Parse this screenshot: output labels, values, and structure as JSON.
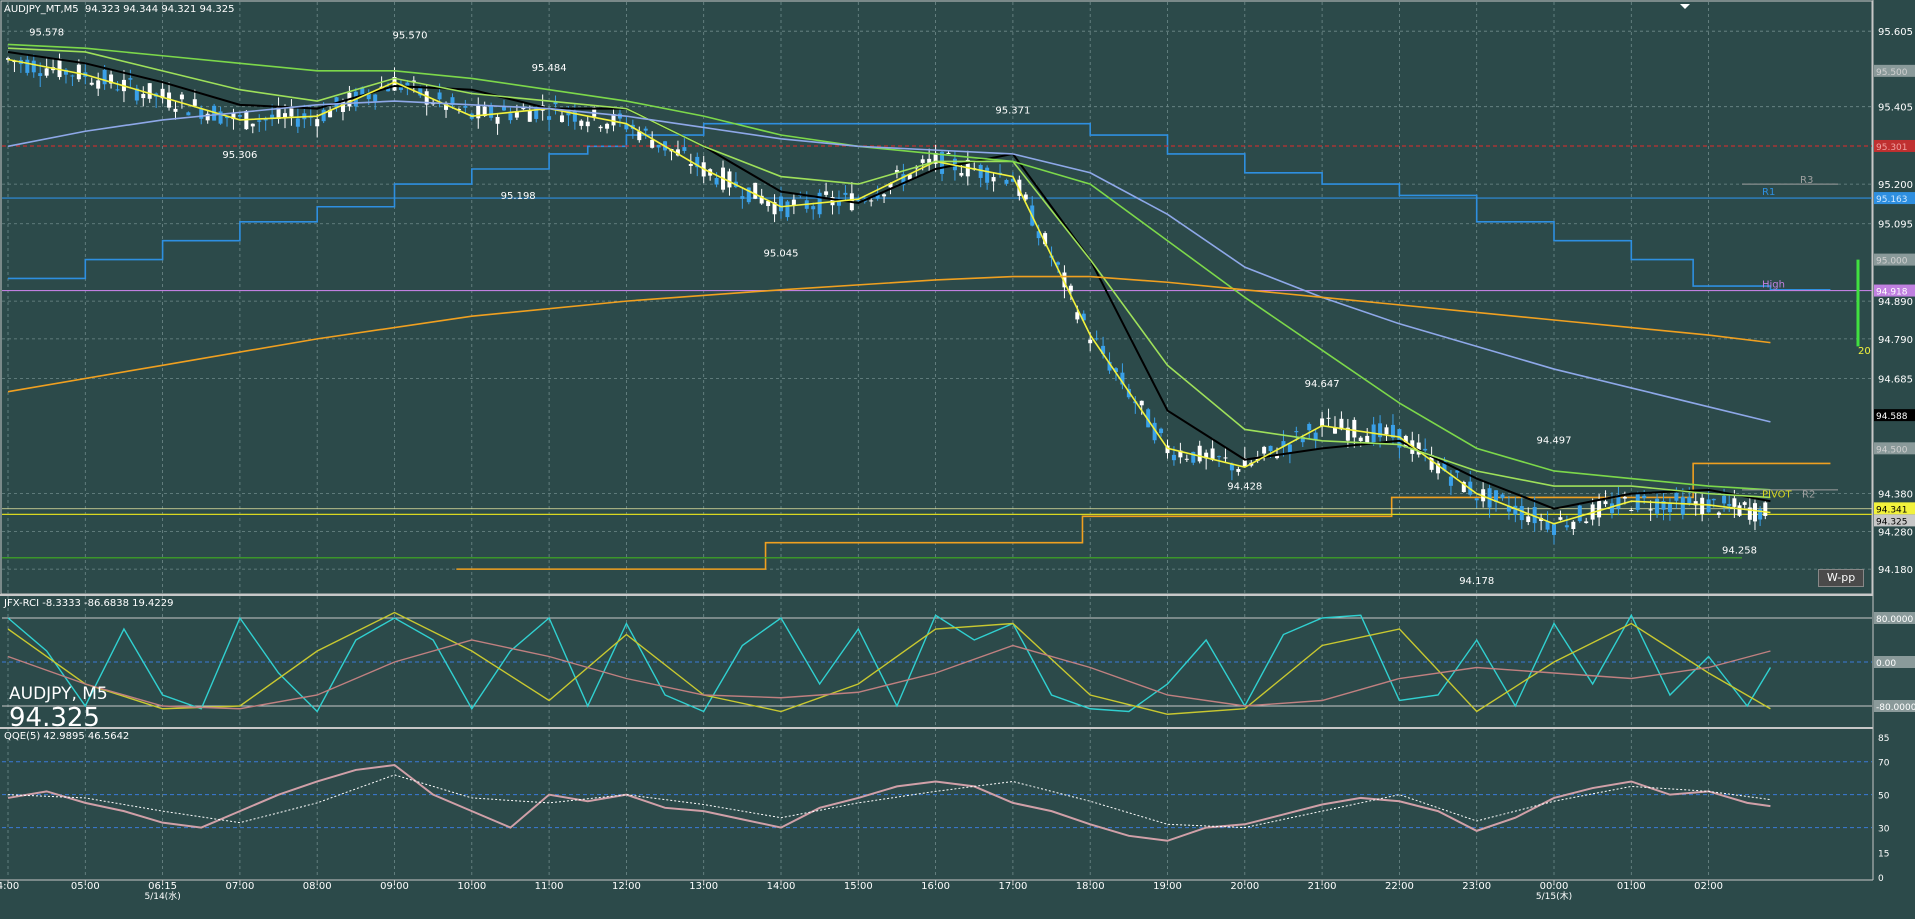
{
  "header": {
    "title": "AUDJPY_MT,M5",
    "ohlc": "94.323 94.344 94.321 94.325"
  },
  "overlay": {
    "symbol": "AUDJPY, M5",
    "price": "94.325"
  },
  "wpp_label": "W-pp",
  "colors": {
    "background": "#2c4a4a",
    "candle_up": "#ffffff",
    "candle_down": "#3aa0e8",
    "ma_black": "#000000",
    "ma_yellow": "#f2f23c",
    "ma_lightgreen": "#9ee05a",
    "ma_blue": "#8ea8e8",
    "ma_orange": "#f0a020",
    "channel_blue": "#2e8fe0",
    "pivot_yellow": "#d8d820",
    "high_violet": "#c080e0",
    "rci_cyan": "#30d0d0",
    "rci_yellow": "#c8c830",
    "rci_pink": "#c08080",
    "qqe_pink": "#d0a0a8",
    "qqe_dotted": "#ffffff"
  },
  "chart_data": [
    {
      "type": "line",
      "panel": "price",
      "ylim": [
        94.13,
        95.64
      ],
      "y_ticks": [
        "95.605",
        "95.405",
        "95.200",
        "95.095",
        "94.890",
        "94.790",
        "94.685",
        "94.380",
        "94.280",
        "94.180"
      ],
      "x_ticks": [
        "4:00",
        "05:00",
        "06:15",
        "07:00",
        "08:00",
        "09:00",
        "10:00",
        "11:00",
        "12:00",
        "13:00",
        "14:00",
        "15:00",
        "16:00",
        "17:00",
        "18:00",
        "19:00",
        "20:00",
        "21:00",
        "22:00",
        "23:00",
        "00:00",
        "01:00",
        "02:00"
      ],
      "date_labels": [
        {
          "text": "5/14(水)",
          "at": "06:15"
        },
        {
          "text": "5/15(木)",
          "at": "00:00"
        }
      ],
      "price_labels": [
        "95.500",
        "95.301",
        "95.163",
        "95.000",
        "94.918",
        "94.588",
        "94.500",
        "94.341",
        "94.325"
      ],
      "annotations": [
        {
          "text": "95.578",
          "x": 0.5,
          "y": 95.578
        },
        {
          "text": "95.570",
          "x": 5.2,
          "y": 95.57
        },
        {
          "text": "95.484",
          "x": 7.0,
          "y": 95.484
        },
        {
          "text": "95.306",
          "x": 3.0,
          "y": 95.306
        },
        {
          "text": "95.198",
          "x": 6.6,
          "y": 95.198
        },
        {
          "text": "95.371",
          "x": 13.0,
          "y": 95.371
        },
        {
          "text": "95.045",
          "x": 10.0,
          "y": 95.045
        },
        {
          "text": "94.647",
          "x": 17.0,
          "y": 94.647
        },
        {
          "text": "94.428",
          "x": 16.0,
          "y": 94.428
        },
        {
          "text": "94.497",
          "x": 20.0,
          "y": 94.497
        },
        {
          "text": "94.178",
          "x": 19.0,
          "y": 94.178
        },
        {
          "text": "94.258",
          "x": 22.4,
          "y": 94.258
        }
      ],
      "level_labels": [
        {
          "text": "R1"
        },
        {
          "text": "R3"
        },
        {
          "text": "High"
        },
        {
          "text": "PIVOT"
        },
        {
          "text": "R2"
        },
        {
          "text": "20"
        }
      ],
      "series": [
        {
          "key": "ma_black",
          "x": [
            0,
            1,
            2,
            3,
            4,
            5,
            6,
            7,
            8,
            9,
            10,
            11,
            12,
            13,
            14,
            15,
            16,
            17,
            18,
            19,
            20,
            21,
            22,
            22.8
          ],
          "values": [
            95.55,
            95.52,
            95.47,
            95.41,
            95.4,
            95.46,
            95.45,
            95.4,
            95.4,
            95.3,
            95.18,
            95.15,
            95.24,
            95.28,
            95.0,
            94.6,
            94.47,
            94.5,
            94.52,
            94.42,
            94.34,
            94.38,
            94.39,
            94.36
          ]
        },
        {
          "key": "ma_yellow",
          "x": [
            0,
            1,
            2,
            3,
            4,
            5,
            6,
            7,
            8,
            9,
            10,
            11,
            12,
            13,
            14,
            15,
            16,
            17,
            18,
            19,
            20,
            21,
            22,
            22.8
          ],
          "values": [
            95.53,
            95.49,
            95.43,
            95.37,
            95.38,
            95.47,
            95.38,
            95.4,
            95.36,
            95.24,
            95.14,
            95.16,
            95.26,
            95.22,
            94.8,
            94.5,
            94.45,
            94.56,
            94.53,
            94.38,
            94.3,
            94.36,
            94.35,
            94.33
          ]
        },
        {
          "key": "ma_lightgreen",
          "x": [
            0,
            1,
            2,
            3,
            4,
            5,
            6,
            7,
            8,
            9,
            10,
            11,
            12,
            13,
            14,
            15,
            16,
            17,
            18,
            19,
            20,
            21,
            22,
            22.8
          ],
          "values": [
            95.56,
            95.55,
            95.5,
            95.45,
            95.42,
            95.48,
            95.44,
            95.42,
            95.4,
            95.3,
            95.22,
            95.2,
            95.26,
            95.26,
            95.0,
            94.72,
            94.55,
            94.52,
            94.51,
            94.44,
            94.4,
            94.4,
            94.38,
            94.37
          ]
        },
        {
          "key": "ma_stepgreen",
          "x": [
            0,
            1,
            2,
            3,
            4,
            5,
            6,
            7,
            8,
            9,
            10,
            11,
            12,
            13,
            14,
            15,
            16,
            17,
            18,
            19,
            20,
            21,
            22,
            22.8
          ],
          "values": [
            95.57,
            95.56,
            95.54,
            95.52,
            95.5,
            95.5,
            95.48,
            95.45,
            95.42,
            95.38,
            95.33,
            95.3,
            95.28,
            95.26,
            95.2,
            95.05,
            94.9,
            94.76,
            94.62,
            94.5,
            94.44,
            94.42,
            94.4,
            94.39
          ]
        },
        {
          "key": "ma_blue",
          "x": [
            0,
            1,
            2,
            3,
            4,
            5,
            6,
            7,
            8,
            9,
            10,
            11,
            12,
            13,
            14,
            15,
            16,
            17,
            18,
            19,
            20,
            21,
            22,
            22.8
          ],
          "values": [
            95.3,
            95.34,
            95.37,
            95.39,
            95.41,
            95.42,
            95.41,
            95.4,
            95.38,
            95.35,
            95.32,
            95.3,
            95.29,
            95.28,
            95.23,
            95.12,
            94.98,
            94.9,
            94.83,
            94.77,
            94.71,
            94.66,
            94.61,
            94.57
          ]
        },
        {
          "key": "ma_orange",
          "x": [
            0,
            2,
            4,
            6,
            8,
            10,
            12,
            13,
            14,
            15,
            16,
            17,
            18,
            19,
            20,
            21,
            22,
            22.8
          ],
          "values": [
            94.65,
            94.72,
            94.79,
            94.85,
            94.89,
            94.92,
            94.946,
            94.955,
            94.955,
            94.94,
            94.92,
            94.9,
            94.88,
            94.86,
            94.84,
            94.82,
            94.8,
            94.78
          ]
        }
      ],
      "step_levels": [
        {
          "key": "channel_top",
          "x": [
            0,
            1,
            2,
            3,
            4,
            5,
            6,
            7,
            7.5,
            8,
            9,
            10,
            11,
            12,
            13,
            14,
            15,
            16,
            17,
            18,
            19,
            20,
            21,
            21.8,
            22.8
          ],
          "values": [
            94.95,
            95.0,
            95.05,
            95.1,
            95.14,
            95.2,
            95.24,
            95.28,
            95.3,
            95.33,
            95.36,
            95.36,
            95.36,
            95.36,
            95.36,
            95.33,
            95.28,
            95.23,
            95.2,
            95.17,
            95.1,
            95.05,
            95.0,
            94.93,
            94.92
          ]
        },
        {
          "key": "orange_pivot",
          "x": [
            5.8,
            9.8,
            13.9,
            17.9,
            21.8,
            22.8
          ],
          "values": [
            94.18,
            94.25,
            94.32,
            94.37,
            94.46,
            94.46
          ]
        },
        {
          "key": "pivot_line",
          "value": 94.325
        },
        {
          "key": "r1_line",
          "value": 95.163
        },
        {
          "key": "r301_line",
          "value": 95.301
        },
        {
          "key": "high_line",
          "value": 94.918
        },
        {
          "key": "green_low",
          "value": 94.21
        }
      ]
    },
    {
      "type": "line",
      "panel": "rci",
      "title": "JFX-RCI -8.3333 -86.6838 19.4229",
      "ylim": [
        -100,
        100
      ],
      "levels": [
        "80.0000",
        "0.00",
        "-80.0000"
      ],
      "series": [
        {
          "key": "rci_cyan",
          "x": [
            0,
            0.5,
            1,
            1.5,
            2,
            2.5,
            3,
            3.5,
            4,
            4.5,
            5,
            5.5,
            6,
            6.5,
            7,
            7.5,
            8,
            8.5,
            9,
            9.5,
            10,
            10.5,
            11,
            11.5,
            12,
            12.5,
            13,
            13.5,
            14,
            14.5,
            15,
            15.5,
            16,
            16.5,
            17,
            17.5,
            18,
            18.5,
            19,
            19.5,
            20,
            20.5,
            21,
            21.5,
            22,
            22.5,
            22.8
          ],
          "values": [
            80,
            20,
            -80,
            60,
            -60,
            -85,
            80,
            -20,
            -90,
            40,
            80,
            40,
            -85,
            20,
            80,
            -80,
            70,
            -60,
            -90,
            30,
            80,
            -40,
            60,
            -80,
            85,
            40,
            70,
            -60,
            -85,
            -90,
            -40,
            40,
            -80,
            50,
            80,
            85,
            -70,
            -60,
            40,
            -80,
            70,
            -40,
            85,
            -60,
            10,
            -80,
            -10
          ]
        },
        {
          "key": "rci_yellow",
          "x": [
            0,
            1,
            2,
            3,
            4,
            5,
            6,
            7,
            8,
            9,
            10,
            11,
            12,
            13,
            14,
            15,
            16,
            17,
            18,
            19,
            20,
            21,
            22,
            22.8
          ],
          "values": [
            60,
            -40,
            -85,
            -80,
            20,
            90,
            20,
            -70,
            50,
            -60,
            -90,
            -40,
            60,
            70,
            -60,
            -95,
            -85,
            30,
            60,
            -90,
            0,
            70,
            -20,
            -85
          ]
        },
        {
          "key": "rci_pink",
          "x": [
            0,
            1,
            2,
            3,
            4,
            5,
            6,
            7,
            8,
            9,
            10,
            11,
            12,
            13,
            14,
            15,
            16,
            17,
            18,
            19,
            20,
            21,
            22,
            22.8
          ],
          "values": [
            10,
            -40,
            -80,
            -85,
            -60,
            0,
            40,
            10,
            -30,
            -60,
            -65,
            -55,
            -20,
            30,
            -10,
            -60,
            -80,
            -70,
            -30,
            -10,
            -20,
            -30,
            -10,
            20
          ]
        }
      ]
    },
    {
      "type": "line",
      "panel": "qqe",
      "title": "QQE(5) 42.9895 46.5642",
      "ylim": [
        0,
        85
      ],
      "y_ticks": [
        "85",
        "70",
        "50",
        "30",
        "15",
        "0"
      ],
      "series": [
        {
          "key": "qqe_main",
          "x": [
            0,
            0.5,
            1,
            1.5,
            2,
            2.5,
            3,
            3.5,
            4,
            4.5,
            5,
            5.5,
            6,
            6.5,
            7,
            7.5,
            8,
            8.5,
            9,
            9.5,
            10,
            10.5,
            11,
            11.5,
            12,
            12.5,
            13,
            13.5,
            14,
            14.5,
            15,
            15.5,
            16,
            16.5,
            17,
            17.5,
            18,
            18.5,
            19,
            19.5,
            20,
            20.5,
            21,
            21.5,
            22,
            22.5,
            22.8
          ],
          "values": [
            48,
            52,
            45,
            40,
            33,
            30,
            40,
            50,
            58,
            65,
            68,
            50,
            40,
            30,
            50,
            46,
            50,
            42,
            40,
            35,
            30,
            42,
            48,
            55,
            58,
            55,
            45,
            40,
            32,
            25,
            22,
            30,
            32,
            38,
            44,
            48,
            46,
            40,
            28,
            36,
            48,
            54,
            58,
            50,
            52,
            45,
            43
          ]
        },
        {
          "key": "qqe_signal",
          "x": [
            0,
            1,
            2,
            3,
            4,
            5,
            6,
            7,
            8,
            9,
            10,
            11,
            12,
            13,
            14,
            15,
            16,
            17,
            18,
            19,
            20,
            21,
            22,
            22.8
          ],
          "values": [
            50,
            48,
            40,
            33,
            45,
            62,
            48,
            45,
            50,
            44,
            36,
            45,
            52,
            58,
            46,
            32,
            30,
            40,
            50,
            34,
            46,
            55,
            52,
            47
          ]
        }
      ]
    }
  ]
}
